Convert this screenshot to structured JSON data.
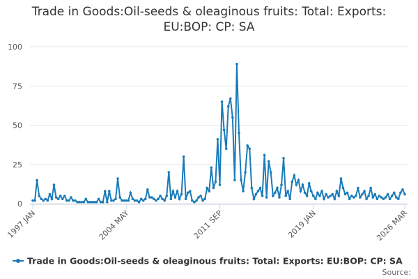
{
  "chart_data": {
    "type": "line",
    "title": "Trade in Goods:Oil-seeds & oleaginous fruits: Total: Exports: EU:BOP: CP: SA",
    "source": "Source:",
    "categories": [
      "1997 JAN",
      null,
      null,
      null,
      null,
      null,
      null,
      null,
      null,
      null,
      null,
      null,
      null,
      null,
      null,
      null,
      null,
      null,
      null,
      null,
      null,
      null,
      null,
      null,
      null,
      null,
      null,
      null,
      null,
      null,
      null,
      null,
      null,
      null,
      null,
      null,
      null,
      null,
      null,
      null,
      null,
      null,
      null,
      null,
      "2004 MAY",
      null,
      null,
      null,
      null,
      null,
      null,
      null,
      null,
      null,
      null,
      null,
      null,
      null,
      null,
      null,
      null,
      null,
      null,
      null,
      null,
      null,
      null,
      null,
      null,
      null,
      null,
      null,
      null,
      null,
      null,
      null,
      null,
      null,
      null,
      null,
      null,
      null,
      null,
      null,
      null,
      null,
      null,
      null,
      "2011 SEP",
      null,
      null,
      null,
      null,
      null,
      null,
      null,
      null,
      null,
      null,
      null,
      null,
      null,
      null,
      null,
      null,
      null,
      null,
      null,
      null,
      null,
      null,
      null,
      null,
      null,
      null,
      null,
      null,
      null,
      null,
      null,
      null,
      null,
      null,
      null,
      null,
      null,
      null,
      null,
      null,
      null,
      null,
      null,
      "2019 JAN",
      null,
      null,
      null,
      null,
      null,
      null,
      null,
      null,
      null,
      null,
      null,
      null,
      null,
      null,
      null,
      null,
      null,
      null,
      null,
      null,
      null,
      null,
      null,
      null,
      null,
      null,
      null,
      null,
      null,
      null,
      null,
      null,
      null,
      null,
      null,
      null,
      null,
      null,
      null,
      null,
      null,
      null,
      "2026 MAR"
    ],
    "series": [
      {
        "name": "Trade in Goods:Oil-seeds & oleaginous fruits: Total: Exports: EU:BOP: CP: SA",
        "color": "#1a7bb9",
        "values": [
          2,
          2,
          15,
          5,
          3,
          2,
          3,
          2,
          6,
          3,
          12,
          4,
          3,
          5,
          3,
          5,
          2,
          2,
          4,
          2,
          2,
          1,
          1,
          1,
          1,
          3,
          1,
          1,
          1,
          1,
          1,
          3,
          1,
          1,
          8,
          1,
          8,
          2,
          2,
          3,
          16,
          4,
          2,
          2,
          2,
          2,
          7,
          3,
          2,
          2,
          1,
          3,
          2,
          3,
          9,
          4,
          4,
          3,
          2,
          3,
          5,
          3,
          2,
          5,
          20,
          3,
          8,
          4,
          8,
          3,
          6,
          30,
          3,
          7,
          8,
          2,
          1,
          2,
          4,
          5,
          2,
          3,
          10,
          8,
          23,
          10,
          14,
          41,
          12,
          65,
          47,
          35,
          62,
          67,
          55,
          15,
          89,
          45,
          15,
          8,
          20,
          37,
          35,
          10,
          3,
          6,
          8,
          10,
          5,
          31,
          4,
          27,
          20,
          5,
          7,
          10,
          4,
          12,
          29,
          5,
          8,
          3,
          14,
          18,
          12,
          15,
          8,
          12,
          7,
          5,
          13,
          8,
          5,
          3,
          7,
          5,
          8,
          3,
          6,
          4,
          5,
          6,
          3,
          8,
          5,
          16,
          10,
          6,
          7,
          3,
          5,
          4,
          5,
          10,
          4,
          6,
          8,
          3,
          5,
          10,
          4,
          6,
          3,
          5,
          4,
          3,
          4,
          6,
          3,
          5,
          7,
          4,
          3,
          7,
          9,
          6
        ]
      }
    ],
    "ylim": [
      0,
      100
    ],
    "yticks": [
      0,
      25,
      50,
      75,
      100
    ],
    "grid": true
  }
}
